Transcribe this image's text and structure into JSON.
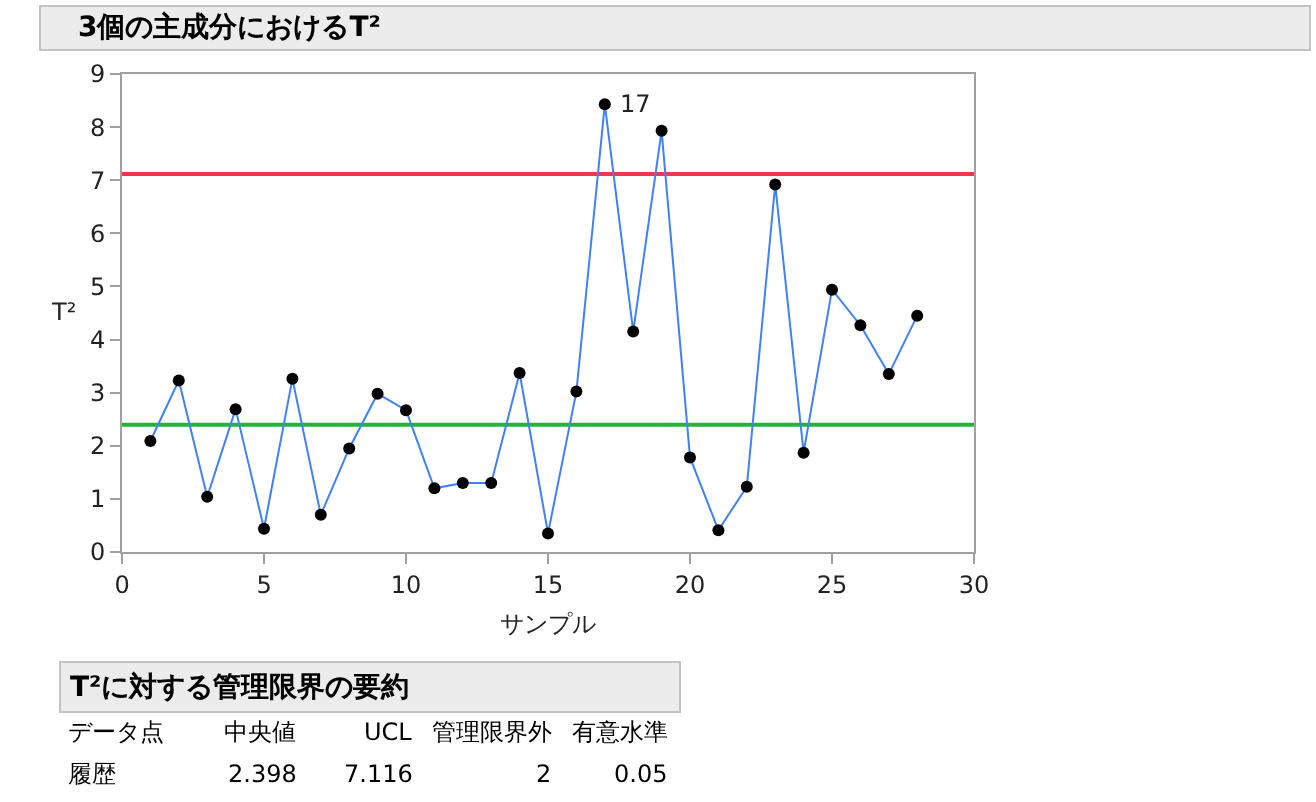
{
  "chart_data": {
    "type": "line",
    "title": "3個の主成分におけるT²",
    "xlabel": "サンプル",
    "ylabel": "T²",
    "x": [
      1,
      2,
      3,
      4,
      5,
      6,
      7,
      8,
      9,
      10,
      11,
      12,
      13,
      14,
      15,
      16,
      17,
      18,
      19,
      20,
      21,
      22,
      23,
      24,
      25,
      26,
      27,
      28
    ],
    "series": [
      {
        "color": "#4080ff",
        "colors": [
          "#000000",
          "#000000",
          "#000000",
          "#000000",
          "#000000",
          "#000000",
          "#000000",
          "#000000",
          "#000000",
          "#000000",
          "#000000",
          "#000000",
          "#000000",
          "#000000",
          "#000000",
          "#000000",
          "#000000",
          "#000000",
          "#000000",
          "#000000",
          "#000000",
          "#000000",
          "#000000",
          "#000000",
          "#000000",
          "#000000",
          "#000000",
          "#000000"
        ],
        "values": [
          2.09,
          3.23,
          1.04,
          2.69,
          0.44,
          3.26,
          0.7,
          1.95,
          2.98,
          2.67,
          1.2,
          1.3,
          1.3,
          3.37,
          0.35,
          3.02,
          8.43,
          4.15,
          7.93,
          1.78,
          0.41,
          1.23,
          6.92,
          1.87,
          4.94,
          4.27,
          3.35,
          4.45
        ]
      }
    ],
    "marker": "circle",
    "line_style": "solid",
    "xlim": [
      0,
      30
    ],
    "xticks": [
      0,
      5,
      10,
      15,
      20,
      25,
      30
    ],
    "ylim": [
      0,
      9
    ],
    "yticks": [
      0,
      1,
      2,
      3,
      4,
      5,
      6,
      7,
      8,
      9
    ],
    "ref_lines": [
      {
        "axis": "y",
        "value": 7.116,
        "color": "#f0364c"
      },
      {
        "axis": "y",
        "value": 2.398,
        "color": "#22b33a"
      }
    ],
    "annotations": [
      {
        "text": "17",
        "x": 17,
        "y": 8.43
      },
      "T²に対する管理限界の要約",
      "データ点",
      "中央値",
      "UCL",
      "管理限界外",
      "有意水準",
      "履歴",
      "2.398",
      "7.116",
      "2",
      "0.05"
    ]
  }
}
